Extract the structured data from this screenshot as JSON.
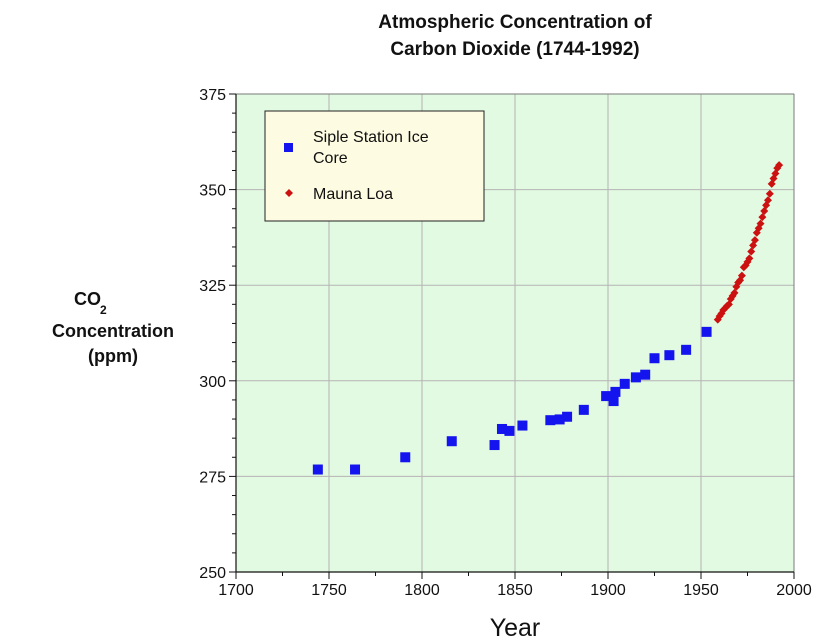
{
  "chart_data": {
    "type": "scatter",
    "title_line1": "Atmospheric Concentration of",
    "title_line2": "Carbon Dioxide (1744-1992)",
    "ylabel_co": "CO",
    "ylabel_sub": "2",
    "ylabel_line2": "Concentration",
    "ylabel_line3": "(ppm)",
    "xlabel": "Year",
    "xlim": [
      1700,
      2000
    ],
    "ylim": [
      250,
      375
    ],
    "x_ticks": [
      1700,
      1750,
      1800,
      1850,
      1900,
      1950,
      2000
    ],
    "y_ticks": [
      250,
      275,
      300,
      325,
      350,
      375
    ],
    "grid": true,
    "legend_position": "top-left",
    "colors": {
      "background": "#e2f9e2",
      "grid": "#b4b4b4",
      "legend_bg": "#fdfbe1"
    },
    "series": [
      {
        "name": "Siple Station Ice Core",
        "legend_line1": "Siple Station Ice",
        "legend_line2": "Core",
        "marker": "square",
        "color": "#1414ee",
        "x": [
          1744,
          1764,
          1791,
          1816,
          1839,
          1843,
          1847,
          1854,
          1869,
          1874,
          1878,
          1887,
          1899,
          1903,
          1904,
          1909,
          1915,
          1920,
          1925,
          1933,
          1942,
          1953
        ],
        "y": [
          276.8,
          276.8,
          280.0,
          284.2,
          283.2,
          287.4,
          286.9,
          288.3,
          289.7,
          289.9,
          290.6,
          292.4,
          296.0,
          294.7,
          297.1,
          299.2,
          300.9,
          301.6,
          305.9,
          306.7,
          308.1,
          312.8
        ]
      },
      {
        "name": "Mauna Loa",
        "legend_line1": "Mauna Loa",
        "marker": "diamond",
        "color": "#cc1111",
        "x": [
          1959,
          1960,
          1961,
          1962,
          1963,
          1964,
          1965,
          1966,
          1967,
          1968,
          1969,
          1970,
          1971,
          1972,
          1973,
          1974,
          1975,
          1976,
          1977,
          1978,
          1979,
          1980,
          1981,
          1982,
          1983,
          1984,
          1985,
          1986,
          1987,
          1988,
          1989,
          1990,
          1991,
          1992
        ],
        "y": [
          316.0,
          316.9,
          317.6,
          318.5,
          319.0,
          319.6,
          320.0,
          321.4,
          322.2,
          323.0,
          324.6,
          325.7,
          326.3,
          327.5,
          329.7,
          330.2,
          331.1,
          332.0,
          333.8,
          335.4,
          336.8,
          338.7,
          339.9,
          341.1,
          342.8,
          344.4,
          345.9,
          347.2,
          348.9,
          351.5,
          352.9,
          354.2,
          355.6,
          356.4
        ]
      }
    ]
  }
}
